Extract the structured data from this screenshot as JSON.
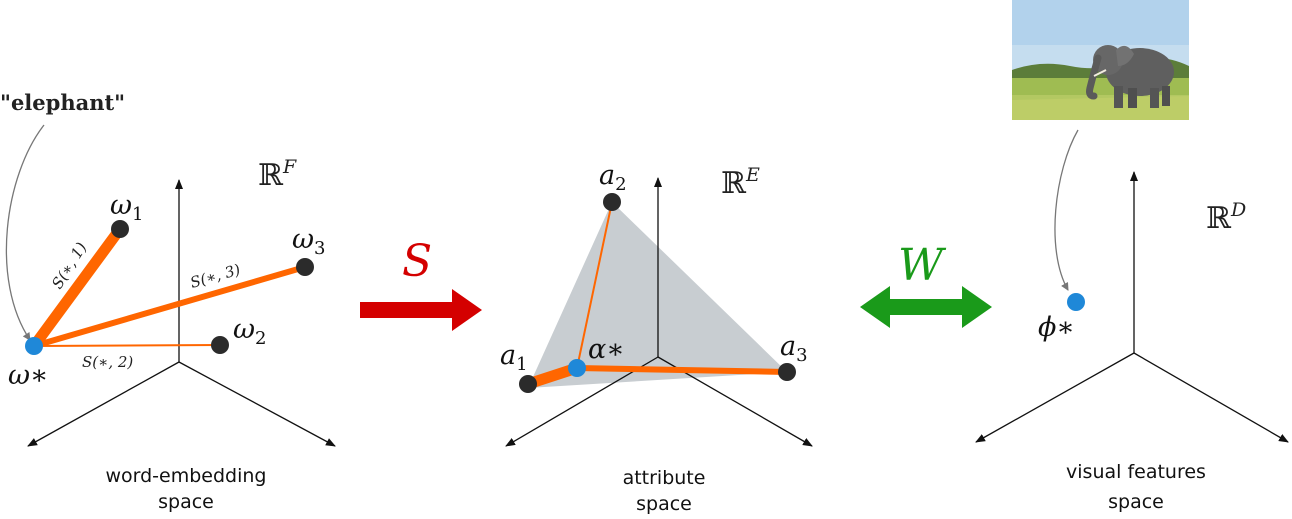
{
  "quote_label": "\"elephant\"",
  "panels": {
    "word": {
      "space_symbol": "ℝ",
      "space_sup": "F",
      "caption_line1": "word-embedding",
      "caption_line2": "space",
      "points": {
        "w1_base": "ω",
        "w1_sub": "1",
        "w2_base": "ω",
        "w2_sub": "2",
        "w3_base": "ω",
        "w3_sub": "3",
        "wstar": "ω∗"
      },
      "edges": {
        "s1": "S(∗, 1)",
        "s2": "S(∗, 2)",
        "s3": "S(∗, 3)"
      }
    },
    "attribute": {
      "space_symbol": "ℝ",
      "space_sup": "E",
      "caption_line1": "attribute",
      "caption_line2": "space",
      "points": {
        "a1_base": "a",
        "a1_sub": "1",
        "a2_base": "a",
        "a2_sub": "2",
        "a3_base": "a",
        "a3_sub": "3",
        "alpha": "α∗"
      }
    },
    "visual": {
      "space_symbol": "ℝ",
      "space_sup": "D",
      "caption_line1": "visual features",
      "caption_line2": "space",
      "points": {
        "phi": "ϕ∗"
      }
    }
  },
  "arrows": {
    "S": {
      "label": "S",
      "color": "#d40000"
    },
    "W": {
      "label": "W",
      "color": "#1a9a1a"
    }
  },
  "colors": {
    "orange": "#ff6600",
    "blue": "#1f88d8",
    "node": "#2b2b2b",
    "simplex": "#c8cdd1"
  }
}
